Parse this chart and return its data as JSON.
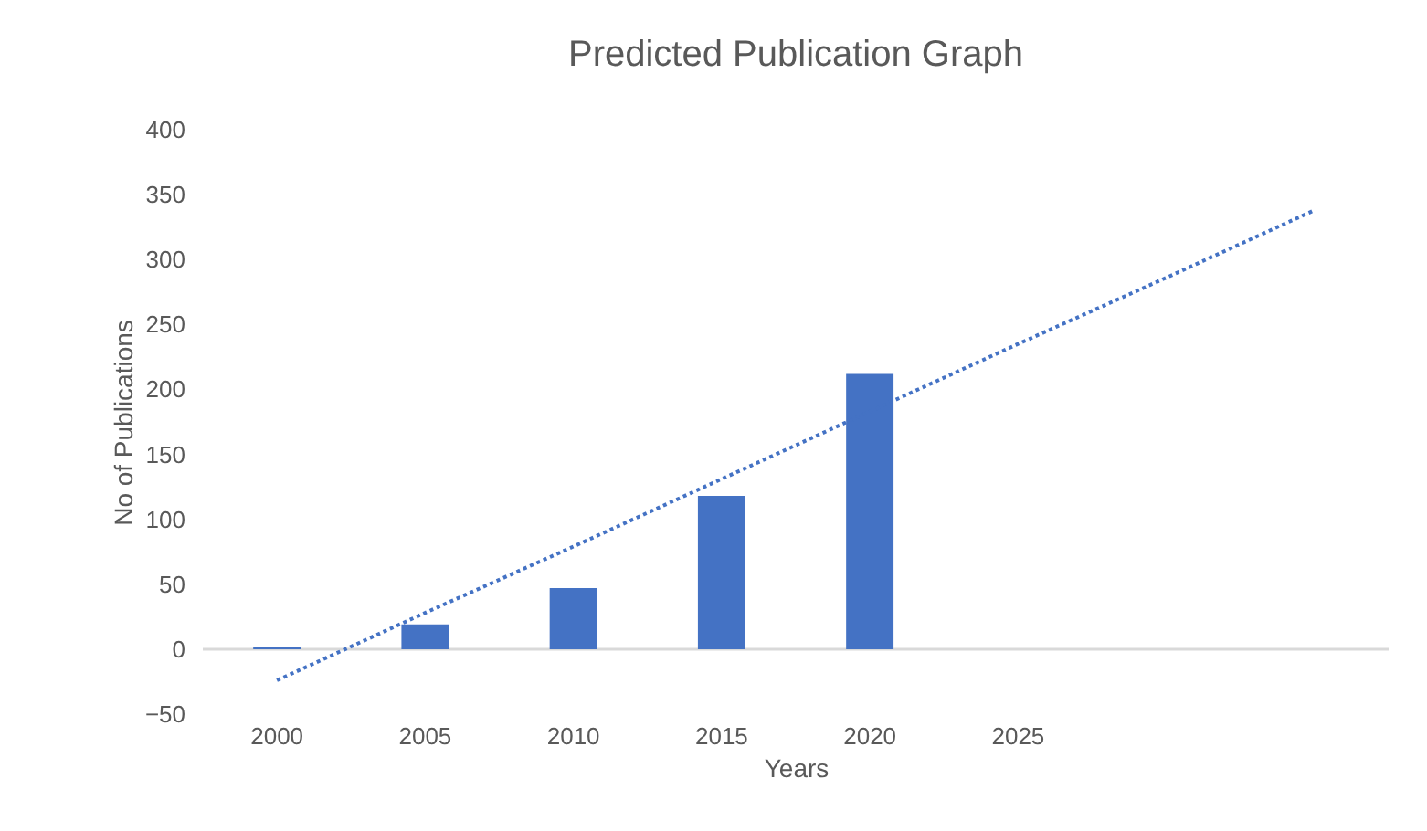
{
  "chart_data": {
    "type": "bar",
    "title": "Predicted Publication Graph",
    "xlabel": "Years",
    "ylabel": "No of Publications",
    "categories": [
      "2000",
      "2005",
      "2010",
      "2015",
      "2020",
      "2025",
      null,
      null
    ],
    "series": [
      {
        "color": "#4472c4",
        "values": [
          2,
          19,
          47,
          118,
          212,
          null,
          null,
          null
        ]
      },
      {
        "type": "line",
        "color": "#4472c4",
        "line_style": "dotted",
        "values": [
          -24,
          28,
          79,
          131,
          183,
          235,
          286,
          338
        ]
      }
    ],
    "ylim": [
      -50,
      400
    ],
    "yticks": [
      -50,
      0,
      50,
      100,
      150,
      200,
      250,
      300,
      350,
      400
    ],
    "ref_lines": [
      {
        "axis": "y",
        "value": 0,
        "color": "#d9d9d9"
      }
    ],
    "grid": false
  }
}
